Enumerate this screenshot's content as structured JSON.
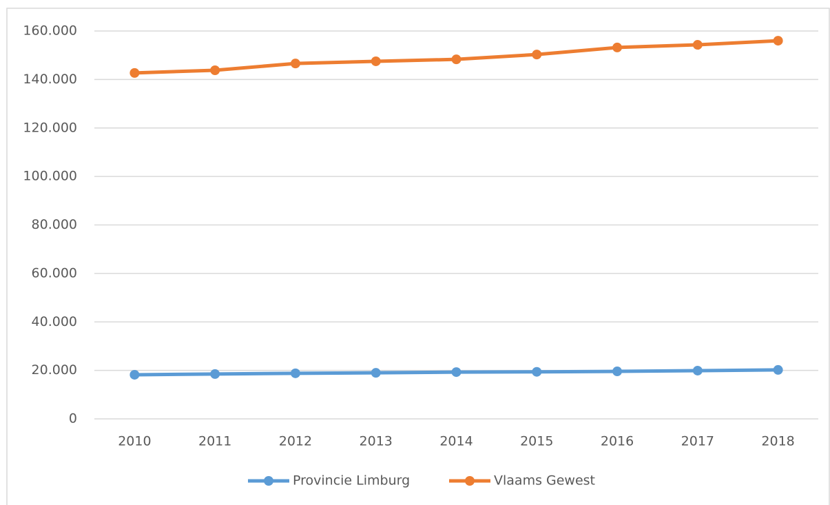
{
  "chart_data": {
    "type": "line",
    "categories": [
      "2010",
      "2011",
      "2012",
      "2013",
      "2014",
      "2015",
      "2016",
      "2017",
      "2018"
    ],
    "series": [
      {
        "name": "Provincie Limburg",
        "color": "#5b9bd5",
        "values": [
          18200,
          18500,
          18800,
          19000,
          19300,
          19400,
          19600,
          19900,
          20200
        ]
      },
      {
        "name": "Vlaams Gewest",
        "color": "#ed7d31",
        "values": [
          142700,
          143800,
          146600,
          147500,
          148300,
          150300,
          153200,
          154300,
          156000
        ]
      }
    ],
    "ylim": [
      0,
      160000
    ],
    "yticks": [
      0,
      {
        "value": 20000,
        "label": "20.000"
      },
      {
        "value": 40000,
        "label": "40.000"
      },
      {
        "value": 60000,
        "label": "60.000"
      },
      {
        "value": 80000,
        "label": "80.000"
      },
      {
        "value": 100000,
        "label": "100.000"
      },
      {
        "value": 120000,
        "label": "120.000"
      },
      {
        "value": 140000,
        "label": "140.000"
      },
      {
        "value": 160000,
        "label": "160.000"
      }
    ],
    "grid": true,
    "legend": "bottom"
  }
}
